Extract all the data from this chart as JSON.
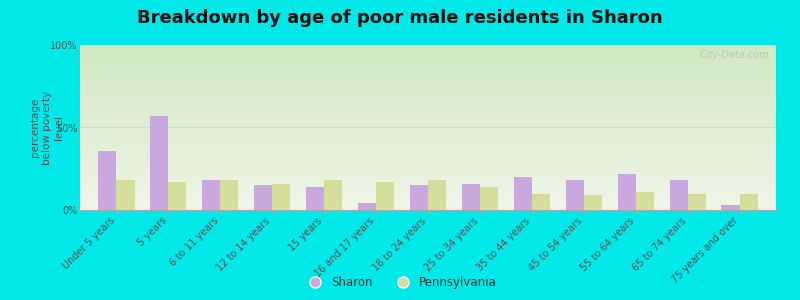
{
  "title": "Breakdown by age of poor male residents in Sharon",
  "ylabel": "percentage\nbelow poverty\nlevel",
  "categories": [
    "Under 5 years",
    "5 years",
    "6 to 11 years",
    "12 to 14 years",
    "15 years",
    "16 and 17 years",
    "18 to 24 years",
    "25 to 34 years",
    "35 to 44 years",
    "45 to 54 years",
    "55 to 64 years",
    "65 to 74 years",
    "75 years and over"
  ],
  "sharon_values": [
    36,
    57,
    18,
    15,
    14,
    4,
    15,
    16,
    20,
    18,
    22,
    18,
    3
  ],
  "pennsylvania_values": [
    18,
    17,
    18,
    16,
    18,
    17,
    18,
    14,
    10,
    9,
    11,
    10,
    10
  ],
  "sharon_color": "#c9a8e0",
  "pennsylvania_color": "#d4dd99",
  "sharon_label": "Sharon",
  "pennsylvania_label": "Pennsylvania",
  "ylim": [
    0,
    100
  ],
  "yticks": [
    0,
    50,
    100
  ],
  "ytick_labels": [
    "0%",
    "50%",
    "100%"
  ],
  "background_color": "#00e8e8",
  "grad_top_color": "#d0e8c0",
  "grad_bottom_color": "#f0f5e8",
  "title_fontsize": 13,
  "axis_label_fontsize": 7.5,
  "tick_label_fontsize": 7,
  "bar_width": 0.35,
  "watermark": "City-Data.com",
  "grid_line_color": "#e8d8b8",
  "tick_color": "#888888",
  "label_color": "#555555"
}
